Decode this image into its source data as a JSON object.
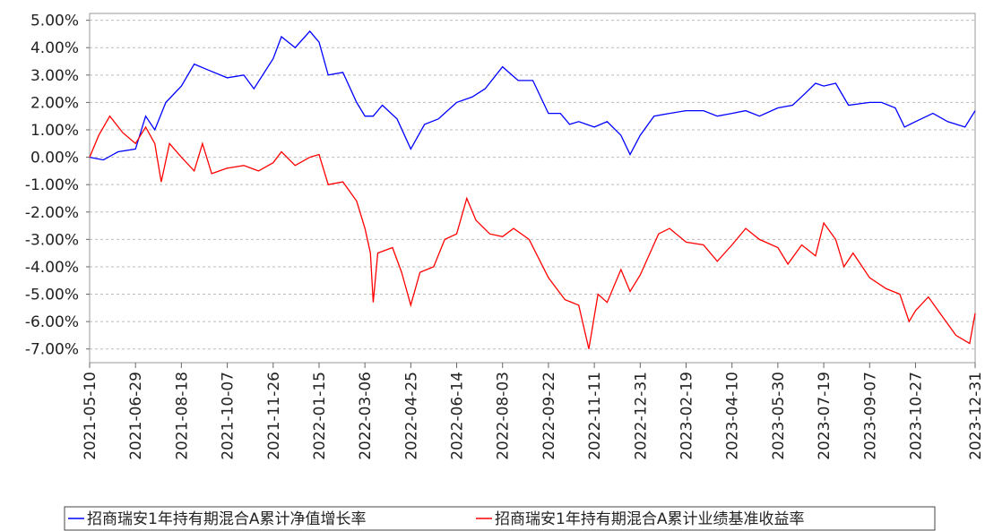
{
  "chart_data": {
    "type": "line",
    "xlim": [
      "2021-05-10",
      "2023-12-31"
    ],
    "xticks": [
      "2021-05-10",
      "2021-06-29",
      "2021-08-18",
      "2021-10-07",
      "2021-11-26",
      "2022-01-15",
      "2022-03-06",
      "2022-04-25",
      "2022-06-14",
      "2022-08-03",
      "2022-09-22",
      "2022-11-11",
      "2022-12-31",
      "2023-02-19",
      "2023-04-10",
      "2023-05-30",
      "2023-07-19",
      "2023-09-07",
      "2023-10-27",
      "2023-12-31"
    ],
    "ylim": [
      -7.5,
      5.25
    ],
    "yticks": [
      {
        "value": 5,
        "label": "5.00%"
      },
      {
        "value": 4,
        "label": "4.00%"
      },
      {
        "value": 3,
        "label": "3.00%"
      },
      {
        "value": 2,
        "label": "2.00%"
      },
      {
        "value": 1,
        "label": "1.00%"
      },
      {
        "value": 0,
        "label": "0.00%"
      },
      {
        "value": -1,
        "label": "-1.00%"
      },
      {
        "value": -2,
        "label": "-2.00%"
      },
      {
        "value": -3,
        "label": "-3.00%"
      },
      {
        "value": -4,
        "label": "-4.00%"
      },
      {
        "value": -5,
        "label": "-5.00%"
      },
      {
        "value": -6,
        "label": "-6.00%"
      },
      {
        "value": -7,
        "label": "-7.00%"
      }
    ],
    "grid": true,
    "legend": "bottom",
    "series": [
      {
        "name": "招商瑞安1年持有期混合A累计净值增长率",
        "color": "#0000ff",
        "x": [
          "2021-05-10",
          "2021-05-25",
          "2021-06-10",
          "2021-06-29",
          "2021-07-10",
          "2021-07-20",
          "2021-08-01",
          "2021-08-18",
          "2021-09-01",
          "2021-09-15",
          "2021-10-07",
          "2021-10-25",
          "2021-11-05",
          "2021-11-26",
          "2021-12-05",
          "2021-12-20",
          "2022-01-05",
          "2022-01-15",
          "2022-01-25",
          "2022-02-10",
          "2022-02-25",
          "2022-03-06",
          "2022-03-15",
          "2022-03-25",
          "2022-04-10",
          "2022-04-25",
          "2022-05-10",
          "2022-05-25",
          "2022-06-14",
          "2022-07-01",
          "2022-07-15",
          "2022-08-03",
          "2022-08-20",
          "2022-09-05",
          "2022-09-22",
          "2022-10-05",
          "2022-10-15",
          "2022-10-25",
          "2022-11-11",
          "2022-11-25",
          "2022-12-10",
          "2022-12-20",
          "2022-12-31",
          "2023-01-15",
          "2023-02-01",
          "2023-02-19",
          "2023-03-10",
          "2023-03-25",
          "2023-04-10",
          "2023-04-25",
          "2023-05-10",
          "2023-05-30",
          "2023-06-15",
          "2023-07-01",
          "2023-07-10",
          "2023-07-19",
          "2023-08-01",
          "2023-08-15",
          "2023-09-07",
          "2023-09-20",
          "2023-10-05",
          "2023-10-15",
          "2023-10-27",
          "2023-11-15",
          "2023-12-01",
          "2023-12-20",
          "2023-12-31"
        ],
        "values": [
          0.0,
          -0.1,
          0.2,
          0.3,
          1.5,
          1.0,
          2.0,
          2.6,
          3.4,
          3.2,
          2.9,
          3.0,
          2.5,
          3.6,
          4.4,
          4.0,
          4.6,
          4.2,
          3.0,
          3.1,
          2.0,
          1.5,
          1.5,
          1.9,
          1.4,
          0.3,
          1.2,
          1.4,
          2.0,
          2.2,
          2.5,
          3.3,
          2.8,
          2.8,
          1.6,
          1.6,
          1.2,
          1.3,
          1.1,
          1.3,
          0.8,
          0.1,
          0.8,
          1.5,
          1.6,
          1.7,
          1.7,
          1.5,
          1.6,
          1.7,
          1.5,
          1.8,
          1.9,
          2.4,
          2.7,
          2.6,
          2.7,
          1.9,
          2.0,
          2.0,
          1.8,
          1.1,
          1.3,
          1.6,
          1.3,
          1.1,
          1.7
        ]
      },
      {
        "name": "招商瑞安1年持有期混合A累计业绩基准收益率",
        "color": "#ff0000",
        "x": [
          "2021-05-10",
          "2021-05-20",
          "2021-06-01",
          "2021-06-15",
          "2021-06-29",
          "2021-07-10",
          "2021-07-20",
          "2021-07-27",
          "2021-08-05",
          "2021-08-18",
          "2021-09-01",
          "2021-09-10",
          "2021-09-20",
          "2021-10-07",
          "2021-10-25",
          "2021-11-10",
          "2021-11-26",
          "2021-12-05",
          "2021-12-20",
          "2022-01-05",
          "2022-01-15",
          "2022-01-25",
          "2022-02-10",
          "2022-02-25",
          "2022-03-06",
          "2022-03-12",
          "2022-03-15",
          "2022-03-20",
          "2022-04-05",
          "2022-04-15",
          "2022-04-25",
          "2022-05-05",
          "2022-05-20",
          "2022-06-01",
          "2022-06-14",
          "2022-06-25",
          "2022-07-05",
          "2022-07-20",
          "2022-08-03",
          "2022-08-15",
          "2022-09-01",
          "2022-09-22",
          "2022-10-10",
          "2022-10-25",
          "2022-11-05",
          "2022-11-15",
          "2022-11-25",
          "2022-12-10",
          "2022-12-20",
          "2022-12-31",
          "2023-01-20",
          "2023-02-01",
          "2023-02-19",
          "2023-03-10",
          "2023-03-25",
          "2023-04-10",
          "2023-04-25",
          "2023-05-10",
          "2023-05-30",
          "2023-06-10",
          "2023-06-25",
          "2023-07-10",
          "2023-07-19",
          "2023-08-01",
          "2023-08-10",
          "2023-08-20",
          "2023-09-07",
          "2023-09-25",
          "2023-10-10",
          "2023-10-20",
          "2023-10-27",
          "2023-11-10",
          "2023-11-25",
          "2023-12-10",
          "2023-12-25",
          "2023-12-31"
        ],
        "values": [
          0.0,
          0.8,
          1.5,
          0.9,
          0.5,
          1.1,
          0.5,
          -0.9,
          0.5,
          0.0,
          -0.5,
          0.5,
          -0.6,
          -0.4,
          -0.3,
          -0.5,
          -0.2,
          0.2,
          -0.3,
          0.0,
          0.1,
          -1.0,
          -0.9,
          -1.6,
          -2.6,
          -3.5,
          -5.3,
          -3.5,
          -3.3,
          -4.2,
          -5.4,
          -4.2,
          -4.0,
          -3.0,
          -2.8,
          -1.5,
          -2.3,
          -2.8,
          -2.9,
          -2.6,
          -3.0,
          -4.4,
          -5.2,
          -5.4,
          -7.0,
          -5.0,
          -5.3,
          -4.1,
          -4.9,
          -4.3,
          -2.8,
          -2.6,
          -3.1,
          -3.2,
          -3.8,
          -3.2,
          -2.6,
          -3.0,
          -3.3,
          -3.9,
          -3.2,
          -3.6,
          -2.4,
          -3.0,
          -4.0,
          -3.5,
          -4.4,
          -4.8,
          -5.0,
          -6.0,
          -5.6,
          -5.1,
          -5.8,
          -6.5,
          -6.8,
          -5.7
        ]
      }
    ]
  }
}
